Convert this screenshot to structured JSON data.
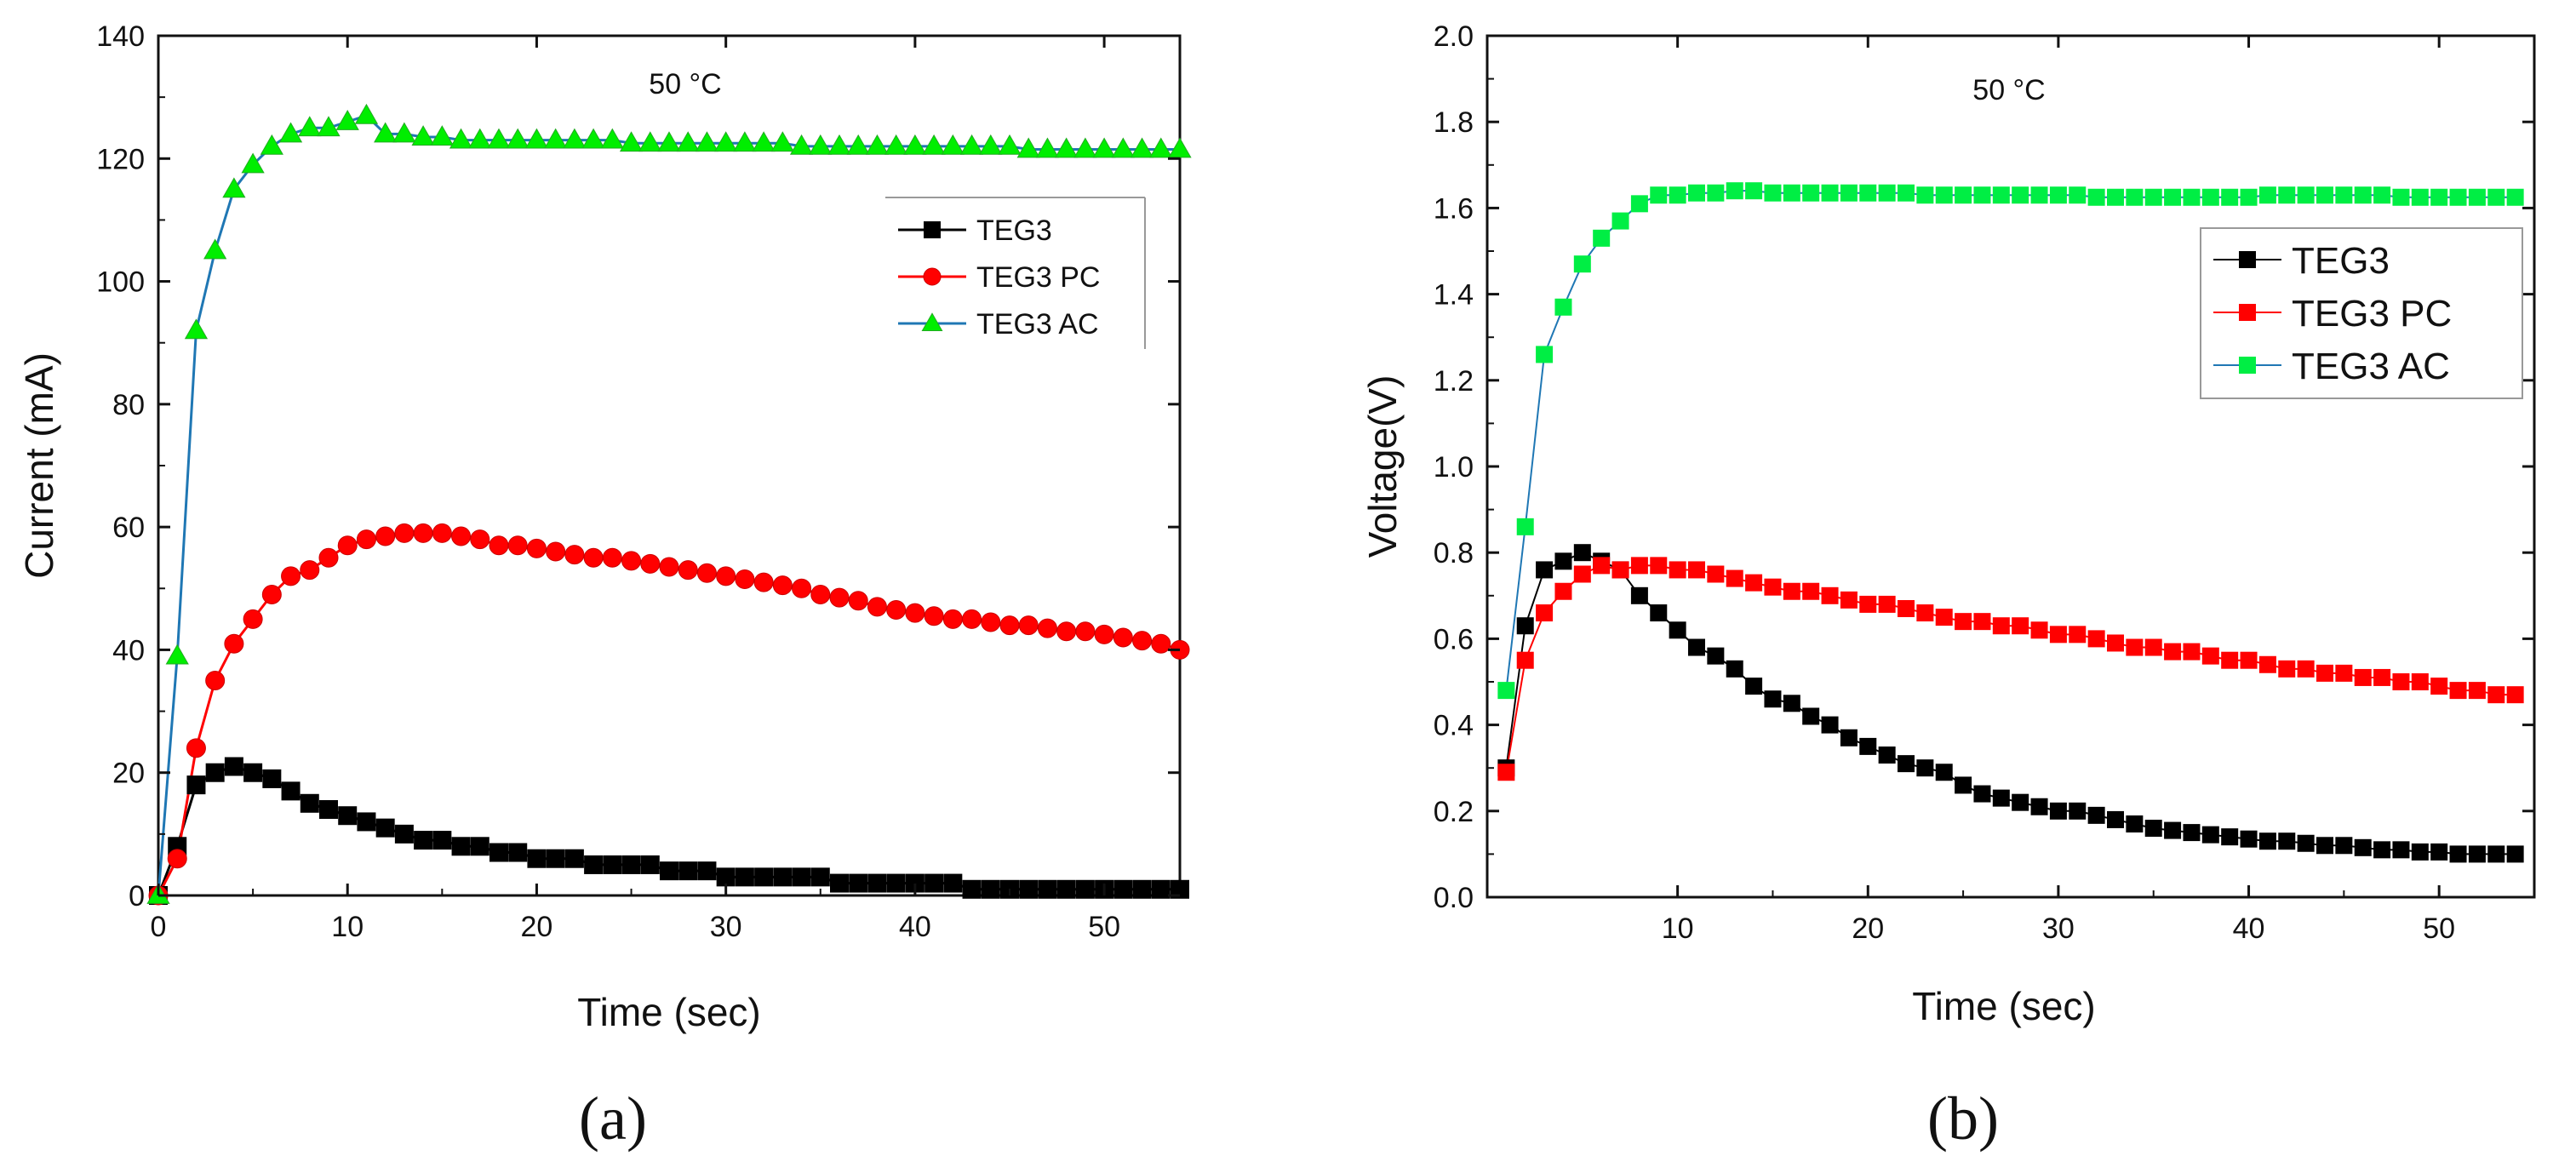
{
  "chart_data": [
    {
      "type": "line",
      "panel_label": "(a)",
      "annotation": "50 °C",
      "xlabel": "Time (sec)",
      "ylabel": "Current (mA)",
      "xlim": [
        0,
        54
      ],
      "ylim": [
        0,
        140
      ],
      "xticks": [
        0,
        10,
        20,
        30,
        40,
        50
      ],
      "yticks": [
        0,
        20,
        40,
        60,
        80,
        100,
        120,
        140
      ],
      "x": [
        0,
        1,
        2,
        3,
        4,
        5,
        6,
        7,
        8,
        9,
        10,
        11,
        12,
        13,
        14,
        15,
        16,
        17,
        18,
        19,
        20,
        21,
        22,
        23,
        24,
        25,
        26,
        27,
        28,
        29,
        30,
        31,
        32,
        33,
        34,
        35,
        36,
        37,
        38,
        39,
        40,
        41,
        42,
        43,
        44,
        45,
        46,
        47,
        48,
        49,
        50,
        51,
        52,
        53,
        54
      ],
      "series": [
        {
          "name": "TEG3",
          "color": "#000000",
          "marker": "square",
          "values": [
            0,
            8,
            18,
            20,
            21,
            20,
            19,
            17,
            15,
            14,
            13,
            12,
            11,
            10,
            9,
            9,
            8,
            8,
            7,
            7,
            6,
            6,
            6,
            5,
            5,
            5,
            5,
            4,
            4,
            4,
            3,
            3,
            3,
            3,
            3,
            3,
            2,
            2,
            2,
            2,
            2,
            2,
            2,
            1,
            1,
            1,
            1,
            1,
            1,
            1,
            1,
            1,
            1,
            1,
            1
          ]
        },
        {
          "name": "TEG3 PC",
          "color": "#ff0000",
          "marker": "circle",
          "values": [
            0,
            6,
            24,
            35,
            41,
            45,
            49,
            52,
            53,
            55,
            57,
            58,
            58.5,
            59,
            59,
            59,
            58.5,
            58,
            57,
            57,
            56.5,
            56,
            55.5,
            55,
            55,
            54.5,
            54,
            53.5,
            53,
            52.5,
            52,
            51.5,
            51,
            50.5,
            50,
            49,
            48.5,
            48,
            47,
            46.5,
            46,
            45.5,
            45,
            45,
            44.5,
            44,
            44,
            43.5,
            43,
            43,
            42.5,
            42,
            41.5,
            41,
            40
          ]
        },
        {
          "name": "TEG3 AC",
          "color": "#00ee00",
          "line_color": "#1f77b4",
          "marker": "triangle",
          "values": [
            0,
            39,
            92,
            105,
            115,
            119,
            122,
            124,
            125,
            125,
            126,
            127,
            124,
            124,
            123.5,
            123.5,
            123,
            123,
            123,
            123,
            123,
            123,
            123,
            123,
            123,
            122.5,
            122.5,
            122.5,
            122.5,
            122.5,
            122.5,
            122.5,
            122.5,
            122.5,
            122,
            122,
            122,
            122,
            122,
            122,
            122,
            122,
            122,
            122,
            122,
            122,
            121.5,
            121.5,
            121.5,
            121.5,
            121.5,
            121.5,
            121.5,
            121.5,
            121.5
          ]
        }
      ]
    },
    {
      "type": "line",
      "panel_label": "(b)",
      "annotation": "50 °C",
      "xlabel": "Time (sec)",
      "ylabel": "Voltage(V)",
      "xlim": [
        0,
        55
      ],
      "ylim": [
        0,
        2.0
      ],
      "xticks": [
        10,
        20,
        30,
        40,
        50
      ],
      "yticks": [
        0.0,
        0.2,
        0.4,
        0.6,
        0.8,
        1.0,
        1.2,
        1.4,
        1.6,
        1.8,
        2.0
      ],
      "x": [
        1,
        2,
        3,
        4,
        5,
        6,
        7,
        8,
        9,
        10,
        11,
        12,
        13,
        14,
        15,
        16,
        17,
        18,
        19,
        20,
        21,
        22,
        23,
        24,
        25,
        26,
        27,
        28,
        29,
        30,
        31,
        32,
        33,
        34,
        35,
        36,
        37,
        38,
        39,
        40,
        41,
        42,
        43,
        44,
        45,
        46,
        47,
        48,
        49,
        50,
        51,
        52,
        53,
        54
      ],
      "series": [
        {
          "name": "TEG3",
          "color": "#000000",
          "marker": "square",
          "values": [
            0.3,
            0.63,
            0.76,
            0.78,
            0.8,
            0.78,
            0.76,
            0.7,
            0.66,
            0.62,
            0.58,
            0.56,
            0.53,
            0.49,
            0.46,
            0.45,
            0.42,
            0.4,
            0.37,
            0.35,
            0.33,
            0.31,
            0.3,
            0.29,
            0.26,
            0.24,
            0.23,
            0.22,
            0.21,
            0.2,
            0.2,
            0.19,
            0.18,
            0.17,
            0.16,
            0.155,
            0.15,
            0.145,
            0.14,
            0.135,
            0.13,
            0.13,
            0.125,
            0.12,
            0.12,
            0.115,
            0.11,
            0.11,
            0.105,
            0.105,
            0.1,
            0.1,
            0.1,
            0.1
          ]
        },
        {
          "name": "TEG3 PC",
          "color": "#ff0000",
          "marker": "square",
          "values": [
            0.29,
            0.55,
            0.66,
            0.71,
            0.75,
            0.77,
            0.76,
            0.77,
            0.77,
            0.76,
            0.76,
            0.75,
            0.74,
            0.73,
            0.72,
            0.71,
            0.71,
            0.7,
            0.69,
            0.68,
            0.68,
            0.67,
            0.66,
            0.65,
            0.64,
            0.64,
            0.63,
            0.63,
            0.62,
            0.61,
            0.61,
            0.6,
            0.59,
            0.58,
            0.58,
            0.57,
            0.57,
            0.56,
            0.55,
            0.55,
            0.54,
            0.53,
            0.53,
            0.52,
            0.52,
            0.51,
            0.51,
            0.5,
            0.5,
            0.49,
            0.48,
            0.48,
            0.47,
            0.47
          ]
        },
        {
          "name": "TEG3 AC",
          "color": "#00ee44",
          "line_color": "#1f77b4",
          "marker": "square",
          "values": [
            0.48,
            0.86,
            1.26,
            1.37,
            1.47,
            1.53,
            1.57,
            1.61,
            1.63,
            1.63,
            1.635,
            1.635,
            1.64,
            1.64,
            1.635,
            1.635,
            1.635,
            1.635,
            1.635,
            1.635,
            1.635,
            1.635,
            1.63,
            1.63,
            1.63,
            1.63,
            1.63,
            1.63,
            1.63,
            1.63,
            1.63,
            1.625,
            1.625,
            1.625,
            1.625,
            1.625,
            1.625,
            1.625,
            1.625,
            1.625,
            1.63,
            1.63,
            1.63,
            1.63,
            1.63,
            1.63,
            1.63,
            1.625,
            1.625,
            1.625,
            1.625,
            1.625,
            1.625,
            1.625
          ]
        }
      ]
    }
  ]
}
